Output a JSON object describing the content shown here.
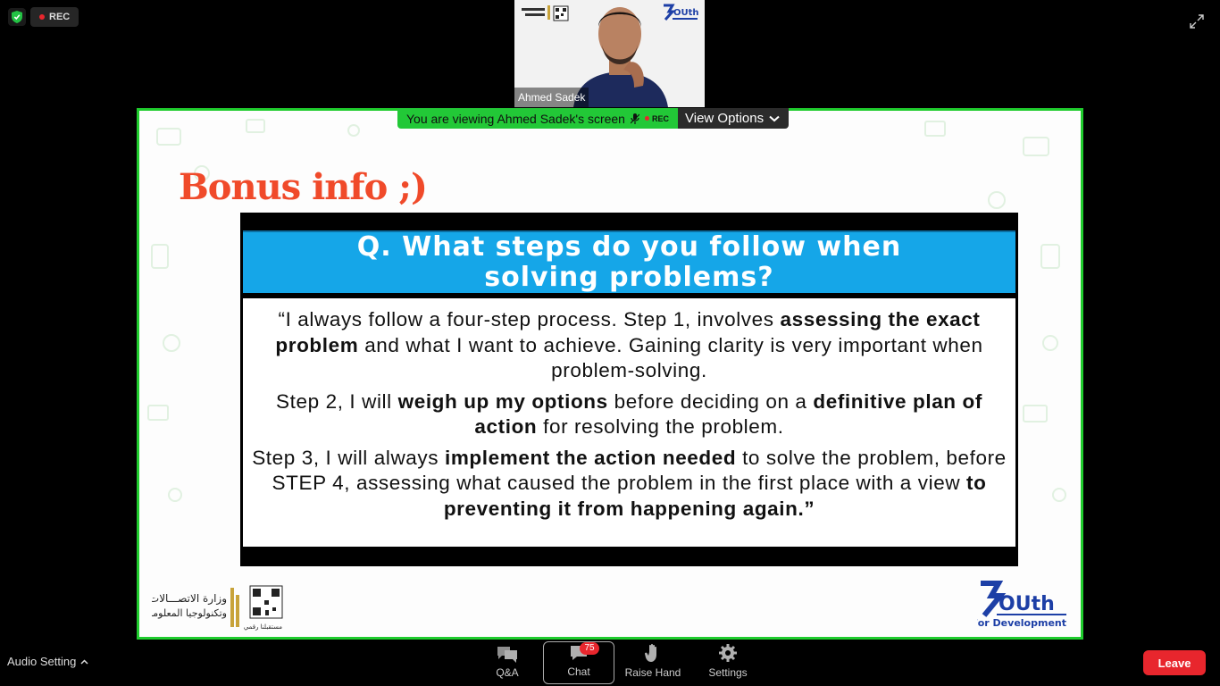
{
  "status": {
    "rec_label": "REC"
  },
  "video": {
    "participant_name": "Ahmed Sadek"
  },
  "share": {
    "viewing_text": "You are viewing Ahmed Sadek's screen",
    "mini_rec_label": "REC",
    "view_options_label": "View Options"
  },
  "slide": {
    "title": "Bonus info ;)",
    "question_line1": "Q. What steps do you follow when",
    "question_line2": "solving problems?",
    "p1": {
      "a": "“I always follow a four-step process. Step 1, involves",
      "b": "assessing the exact problem",
      "c": " and what I want to achieve. Gaining clarity is very important when problem-solving."
    },
    "p2": {
      "a": "Step 2, I will ",
      "b": "weigh up my options",
      "c": " before deciding on a ",
      "d": "definitive plan of action",
      "e": " for resolving the problem."
    },
    "p3": {
      "a": "Step 3, I will always ",
      "b": "implement the action needed",
      "c": " to solve the problem, before STEP 4, assessing what caused the problem in the first place with a view ",
      "d": "to preventing it from happening again.”"
    },
    "youth_logo_main": "OUth",
    "youth_logo_sub": "For Development",
    "ministry_logo_line1": "وزارة الاتصـــالات",
    "ministry_logo_line2": "وتكنولوجيا المعلومات",
    "ministry_logo_tag": "مستقبلنا رقمي"
  },
  "toolbar": {
    "audio_setting_label": "Audio Setting",
    "qa_label": "Q&A",
    "chat_label": "Chat",
    "chat_badge": "75",
    "raise_hand_label": "Raise Hand",
    "settings_label": "Settings",
    "leave_label": "Leave"
  },
  "colors": {
    "share_border": "#1fcc2d",
    "question_bg": "#15a6e8",
    "title_color": "#f04a2a",
    "leave_bg": "#e8262d",
    "youth_logo_blue": "#1d3fa6"
  }
}
